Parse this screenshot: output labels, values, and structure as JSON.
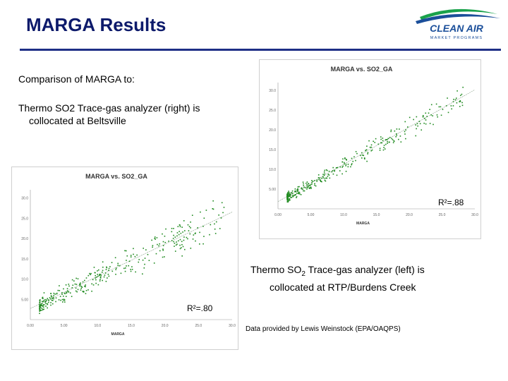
{
  "slide": {
    "title": "MARGA Results",
    "logo": {
      "name": "CLEAN AIR",
      "tagline": "MARKET PROGRAMS",
      "accent": "#1aa24b",
      "brand": "#1b4f9a"
    },
    "intro": "Comparison of MARGA to:",
    "right_note_line1": "Thermo SO2 Trace-gas analyzer (right) is",
    "right_note_line2": "collocated at Beltsville",
    "left_note_line1_pre": "Thermo SO",
    "left_note_line1_sub": "2",
    "left_note_line1_post": " Trace-gas analyzer (left) is",
    "left_note_line2": "collocated at RTP/Burdens Creek",
    "credit": "Data provided by Lewis Weinstock (EPA/OAQPS)"
  },
  "chart_data": [
    {
      "type": "scatter",
      "title": "MARGA vs. SO2_GA",
      "xlabel": "MARGA",
      "r2_label": "R²=.88",
      "point_color": "#1f8a1f",
      "trend_color": "#8aa08a",
      "xlim": [
        0,
        3500
      ],
      "ylim": [
        0,
        3500
      ],
      "x_ticks": [
        "0.00",
        "5.00",
        "10.0",
        "15.0",
        "20.0",
        "25.0",
        "30.0"
      ],
      "y_ticks": [
        "5.00",
        "10.0",
        "15.0",
        "20.0",
        "25.0",
        "30.0"
      ],
      "trend": [
        [
          0,
          200
        ],
        [
          3500,
          3300
        ]
      ],
      "n_points": 320,
      "spread": 220
    },
    {
      "type": "scatter",
      "title": "MARGA vs. SO2_GA",
      "xlabel": "MARGA",
      "r2_label": "R²=.80",
      "point_color": "#1f8a1f",
      "trend_color": "#8aa08a",
      "xlim": [
        0,
        3500
      ],
      "ylim": [
        0,
        3500
      ],
      "x_ticks": [
        "0.00",
        "5.00",
        "10.0",
        "15.0",
        "20.0",
        "25.0",
        "30.0"
      ],
      "y_ticks": [
        "5.00",
        "10.0",
        "15.0",
        "20.0",
        "25.0",
        "30.0"
      ],
      "trend": [
        [
          0,
          300
        ],
        [
          3500,
          2900
        ]
      ],
      "n_points": 340,
      "spread": 380
    }
  ]
}
